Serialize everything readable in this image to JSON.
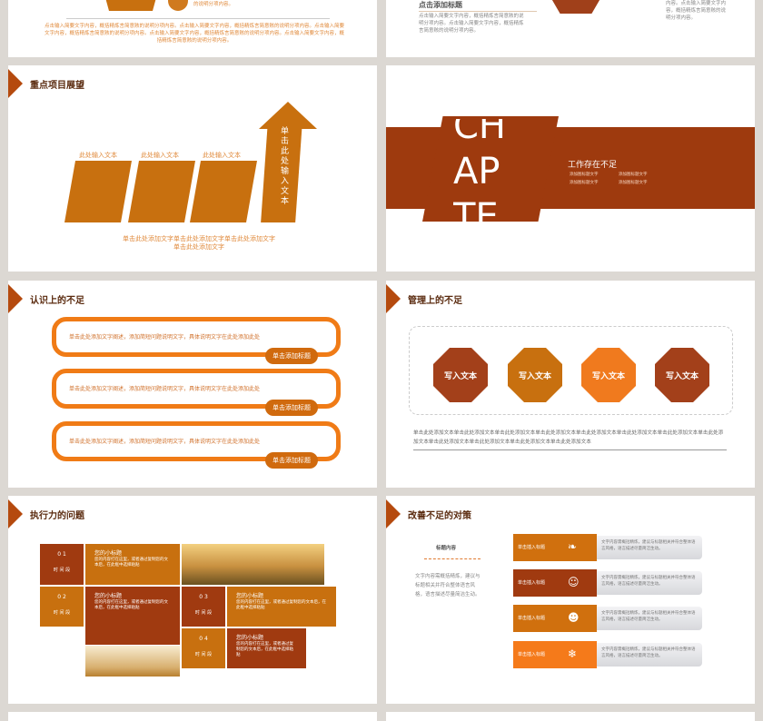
{
  "slides": {
    "top_left": {
      "caption": "的说明分项内容。",
      "body": "点击输入简要文字内容，概括精炼言简意赅的说明分项内容。点击输入简要文字内容，概括精炼言简意赅的说明分项内容。点击输入简要文字内容，概括精炼言简意赅的说明分项内容。点击输入简要文字内容，概括精炼言简意赅的说明分项内容。点击输入简要文字内容，概括精炼言简意赅的说明分项内容。"
    },
    "top_right": {
      "heading": "点击添加标题",
      "body_left": "点击输入简要文字内容，概括精炼言简意赅的说明分项内容。点击输入简要文字内容，概括精炼言简意赅的说明分项内容。",
      "body_right": "内容。点击输入简要文字内容，概括精炼言简意赅的说明分项内容。"
    },
    "key_projects": {
      "title": "重点项目展望",
      "steps": [
        "此处输入文本",
        "此处输入文本",
        "此处输入文本"
      ],
      "arrow_text": "单击此处输入文本",
      "footer": "单击此处添加文字单击此处添加文字单击此处添加文字",
      "footer2": "单击此处添加文字"
    },
    "chapter": {
      "letters": [
        "CH",
        "AP",
        "TE"
      ],
      "heading": "工作存在不足",
      "bullets": [
        "添加图标题文字",
        "添加图标题文字",
        "添加图标题文字",
        "添加图标题文字"
      ]
    },
    "awareness": {
      "title": "认识上的不足",
      "items": [
        {
          "text": "单击此处添加文字阐述，添加简短问题说明文字，具体说明文字在此处添加此处",
          "badge": "单击添加标题"
        },
        {
          "text": "单击此处添加文字阐述，添加简短问题说明文字，具体说明文字在此处添加此处",
          "badge": "单击添加标题"
        },
        {
          "text": "单击此处添加文字阐述，添加简短问题说明文字，具体说明文字在此处添加此处",
          "badge": "单击添加标题"
        }
      ]
    },
    "management": {
      "title": "管理上的不足",
      "octagons": [
        {
          "label": "写入文本",
          "color": "#a3401a"
        },
        {
          "label": "写入文本",
          "color": "#c8700f"
        },
        {
          "label": "写入文本",
          "color": "#f07a1e"
        },
        {
          "label": "写入文本",
          "color": "#a3401a"
        }
      ],
      "body": "单击此处添加文本单击此处添加文本单击此处添加文本单击此处添加文本单击此处添加文本单击此处添加文本单击此处添加文本单击此处添加文本单击此处添加文本单击此处添加文本单击此处添加文本单击此处添加文本"
    },
    "execution": {
      "title": "执行力的问题",
      "blocks": [
        {
          "num": "0 1",
          "label": "时 间 段",
          "subtitle": "您的小标题",
          "text": "您的内容打在这里，或者通过复制您的文本后，在此框中选择粘贴"
        },
        {
          "num": "0 2",
          "label": "时 间 段",
          "subtitle": "您的小标题",
          "text": "您的内容打在这里，或者通过复制您的文本后，在此框中选择粘贴"
        },
        {
          "num": "0 3",
          "label": "时 间 段",
          "subtitle": "您的小标题",
          "text": "您的内容打在这里，或者通过复制您的文本后，在此框中选择粘贴"
        },
        {
          "num": "0 4",
          "label": "时 间 段",
          "subtitle": "您的小标题",
          "text": "您的内容打在这里，或者通过复制您的文本后，在此框中选择粘贴"
        }
      ]
    },
    "countermeasures": {
      "title": "改善不足的对策",
      "side_title": "标题内容",
      "side_text": "文字内容需概括精炼，建议与标题相关并符合整体语言风格，语言描述尽量简洁生动。",
      "rows": [
        {
          "label": "单击插入标题",
          "icon": "candy-cane-icon",
          "color": "#d0700e",
          "text": "文字内容需概括精炼，建议与标题相关并符合整体语言风格，语言描述尽量简洁生动。"
        },
        {
          "label": "单击插入标题",
          "icon": "reindeer-icon",
          "color": "#a03a10",
          "text": "文字内容需概括精炼，建议与标题相关并符合整体语言风格，语言描述尽量简洁生动。"
        },
        {
          "label": "单击插入标题",
          "icon": "santa-icon",
          "color": "#d0700e",
          "text": "文字内容需概括精炼，建议与标题相关并符合整体语言风格，语言描述尽量简洁生动。"
        },
        {
          "label": "单击插入标题",
          "icon": "stocking-icon",
          "color": "#f57a1a",
          "text": "文字内容需概括精炼，建议与标题相关并符合整体语言风格，语言描述尽量简洁生动。"
        }
      ]
    }
  }
}
